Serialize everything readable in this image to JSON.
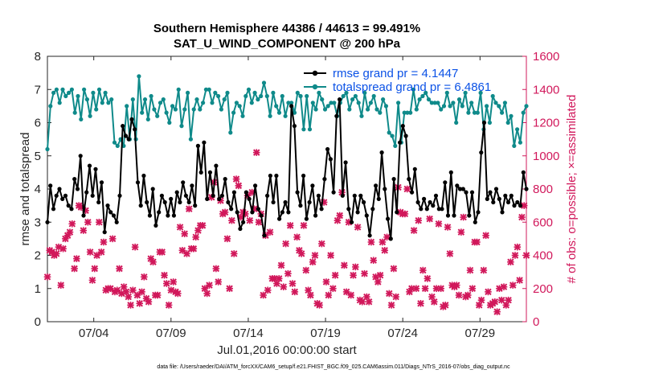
{
  "chart_data": {
    "type": "line",
    "title": "Southern Hemisphere 44386 / 44613 = 99.491%",
    "subtitle": "SAT_U_WIND_COMPONENT @ 200 hPa",
    "xlabel": "Jul.01,2016 00:00:00 start",
    "ylabel": "rmse and totalspread",
    "ylabel_right": "# of obs: o=possible; ×=assimilated",
    "footer": "data file: /Users/raeder/DAI/ATM_forcXX/CAM6_setup/f.e21.FHIST_BGC.f09_025.CAM6assim.011/Diags_NTrS_2016-07/obs_diag_output.nc",
    "xlim": [
      1.0,
      32.0
    ],
    "ylim": [
      0,
      8
    ],
    "ylim_right": [
      0,
      1600
    ],
    "x_ticks": [
      4,
      9,
      14,
      19,
      24,
      29
    ],
    "x_tick_labels": [
      "07/04",
      "07/09",
      "07/14",
      "07/19",
      "07/24",
      "07/29"
    ],
    "y_ticks": [
      0,
      1,
      2,
      3,
      4,
      5,
      6,
      7,
      8
    ],
    "y_tick_labels": [
      "0",
      "1",
      "2",
      "3",
      "4",
      "5",
      "6",
      "7",
      "8"
    ],
    "y_ticks_right": [
      0,
      200,
      400,
      600,
      800,
      1000,
      1200,
      1400,
      1600
    ],
    "y_tick_labels_right": [
      "0",
      "200",
      "400",
      "600",
      "800",
      "1000",
      "1200",
      "1400",
      "1600"
    ],
    "legend_position": "top-right",
    "x_step_days": 0.25,
    "colors": {
      "rmse": "#000000",
      "spread": "#0f8a8a",
      "obs": "#d1185b",
      "legend_text": "#0b52e6"
    },
    "series": [
      {
        "name": "rmse grand pr = 4.1447",
        "axis": "left",
        "marker": "circle",
        "x_start": 1.0,
        "values": [
          3.0,
          4.1,
          3.4,
          3.8,
          4.0,
          3.7,
          3.8,
          3.5,
          3.4,
          4.3,
          4.0,
          5.0,
          3.2,
          3.9,
          4.7,
          3.8,
          4.6,
          3.6,
          4.2,
          2.7,
          3.5,
          3.3,
          3.2,
          3.0,
          3.8,
          5.9,
          5.6,
          5.5,
          6.1,
          5.8,
          4.2,
          3.5,
          4.4,
          3.6,
          3.2,
          4.0,
          2.9,
          3.3,
          3.8,
          3.6,
          3.2,
          3.7,
          3.2,
          3.9,
          3.6,
          4.2,
          3.8,
          3.6,
          4.1,
          3.5,
          5.3,
          4.5,
          5.4,
          3.7,
          4.5,
          3.8,
          4.7,
          3.7,
          3.8,
          4.3,
          3.6,
          3.4,
          3.9,
          3.3,
          2.8,
          3.0,
          3.9,
          3.7,
          3.3,
          4.1,
          3.4,
          3.2,
          2.6,
          3.8,
          4.4,
          3.6,
          4.4,
          3.1,
          3.3,
          3.6,
          3.3,
          6.5,
          5.9,
          3.9,
          3.5,
          4.4,
          3.1,
          3.6,
          4.1,
          3.2,
          3.8,
          3.4,
          4.3,
          5.2,
          4.9,
          3.9,
          6.2,
          6.7,
          3.8,
          4.8,
          3.4,
          3.0,
          3.8,
          3.3,
          3.8,
          3.6,
          3.2,
          2.6,
          3.4,
          4.1,
          3.7,
          5.1,
          4.0,
          3.1,
          2.5,
          4.3,
          3.3,
          5.4,
          5.9,
          5.6,
          4.3,
          3.9,
          4.6,
          3.6,
          3.4,
          3.7,
          3.4,
          3.6,
          3.5,
          3.8,
          3.4,
          3.4,
          4.2,
          3.2,
          4.5,
          3.2,
          4.1,
          4.0,
          4.0,
          3.9,
          3.2,
          3.9,
          3.0,
          3.3,
          5.1,
          6.0,
          3.7,
          3.9,
          3.6,
          4.0,
          3.7,
          3.3,
          3.8,
          3.6,
          3.8,
          3.5,
          3.6,
          3.5,
          4.5,
          4.0
        ]
      },
      {
        "name": "totalspread grand pr = 6.4861",
        "axis": "left",
        "marker": "circle",
        "x_start": 1.0,
        "values": [
          5.2,
          6.5,
          6.9,
          7.0,
          6.6,
          7.0,
          6.8,
          6.9,
          7.0,
          6.3,
          6.8,
          6.1,
          7.0,
          6.7,
          6.2,
          6.9,
          6.4,
          7.0,
          6.6,
          6.9,
          6.6,
          6.7,
          5.4,
          5.3,
          5.5,
          5.3,
          6.5,
          5.5,
          6.7,
          5.5,
          7.4,
          6.3,
          6.7,
          6.1,
          6.8,
          6.4,
          6.2,
          6.6,
          6.7,
          6.3,
          6.0,
          6.5,
          6.4,
          7.0,
          5.9,
          6.4,
          6.9,
          5.5,
          6.4,
          6.7,
          6.4,
          6.6,
          7.0,
          7.0,
          6.6,
          6.9,
          6.8,
          6.4,
          6.7,
          6.9,
          5.7,
          6.3,
          6.6,
          6.5,
          6.2,
          6.8,
          7.0,
          6.6,
          6.9,
          6.7,
          6.8,
          7.2,
          6.8,
          6.2,
          6.9,
          6.5,
          6.3,
          6.8,
          6.2,
          6.6,
          6.6,
          6.3,
          6.9,
          6.8,
          5.8,
          6.8,
          5.8,
          6.6,
          6.4,
          6.9,
          6.7,
          6.4,
          6.5,
          6.6,
          6.6,
          6.2,
          6.6,
          6.8,
          6.9,
          6.4,
          6.7,
          6.8,
          6.6,
          6.2,
          6.9,
          6.4,
          6.6,
          6.8,
          6.4,
          6.3,
          6.7,
          6.5,
          5.7,
          5.6,
          5.3,
          6.6,
          5.4,
          6.3,
          6.3,
          6.3,
          7.0,
          6.4,
          6.7,
          6.8,
          6.9,
          6.7,
          6.6,
          6.6,
          6.6,
          6.4,
          6.5,
          6.9,
          6.5,
          6.6,
          6.0,
          6.7,
          6.5,
          6.9,
          6.3,
          6.6,
          6.3,
          6.3,
          6.9,
          5.8,
          6.5,
          6.0,
          6.8,
          6.6,
          6.5,
          6.3,
          6.6,
          6.0,
          6.2,
          5.3,
          5.8,
          5.4,
          6.3,
          6.5
        ]
      }
    ],
    "obs_assimilated": {
      "axis": "right",
      "marker": "x",
      "x_start": 1.0,
      "values": [
        270,
        430,
        420,
        400,
        410,
        450,
        220,
        440,
        500,
        520,
        540,
        590,
        320,
        380,
        700,
        690,
        550,
        670,
        600,
        420,
        250,
        320,
        400,
        600,
        420,
        480,
        190,
        200,
        200,
        500,
        180,
        190,
        320,
        170,
        210,
        180,
        150,
        100,
        190,
        450,
        160,
        110,
        180,
        270,
        140,
        120,
        380,
        360,
        160,
        160,
        420,
        420,
        280,
        230,
        100,
        190,
        240,
        180,
        170,
        570,
        430,
        530,
        410,
        680,
        440,
        440,
        510,
        550,
        580,
        580,
        200,
        170,
        220,
        750,
        840,
        320,
        240,
        730,
        650,
        660,
        500,
        200,
        610,
        410,
        860,
        820,
        630,
        660,
        650,
        760,
        610,
        780,
        680,
        1020,
        600,
        650,
        160,
        520,
        190,
        540,
        260,
        260,
        230,
        260,
        340,
        210,
        470,
        290,
        580,
        230,
        180,
        510,
        430,
        410,
        580,
        310,
        190,
        160,
        360,
        400,
        110,
        100,
        470,
        720,
        240,
        160,
        400,
        200,
        280,
        610,
        640,
        780,
        340,
        180,
        600,
        160,
        280,
        330,
        570,
        130,
        120,
        290,
        150,
        120,
        480,
        370,
        270,
        240,
        280,
        480,
        430,
        510,
        170,
        100,
        320,
        150,
        810,
        660,
        650,
        650,
        800,
        180,
        200,
        550,
        200,
        610,
        110,
        310,
        200,
        260,
        620,
        150,
        120,
        200,
        590,
        200,
        90,
        100,
        570,
        410,
        220,
        210,
        220,
        160,
        540,
        630,
        150,
        160,
        310,
        200,
        480,
        480,
        100,
        130,
        310,
        520,
        180,
        100,
        110,
        120,
        60,
        200,
        130,
        210,
        100,
        130,
        360,
        220,
        400,
        450,
        250,
        630,
        700,
        400
      ]
    }
  },
  "legend": {
    "rmse_label": "rmse grand pr = 4.1447",
    "spread_label": "totalspread grand pr = 6.4861"
  }
}
